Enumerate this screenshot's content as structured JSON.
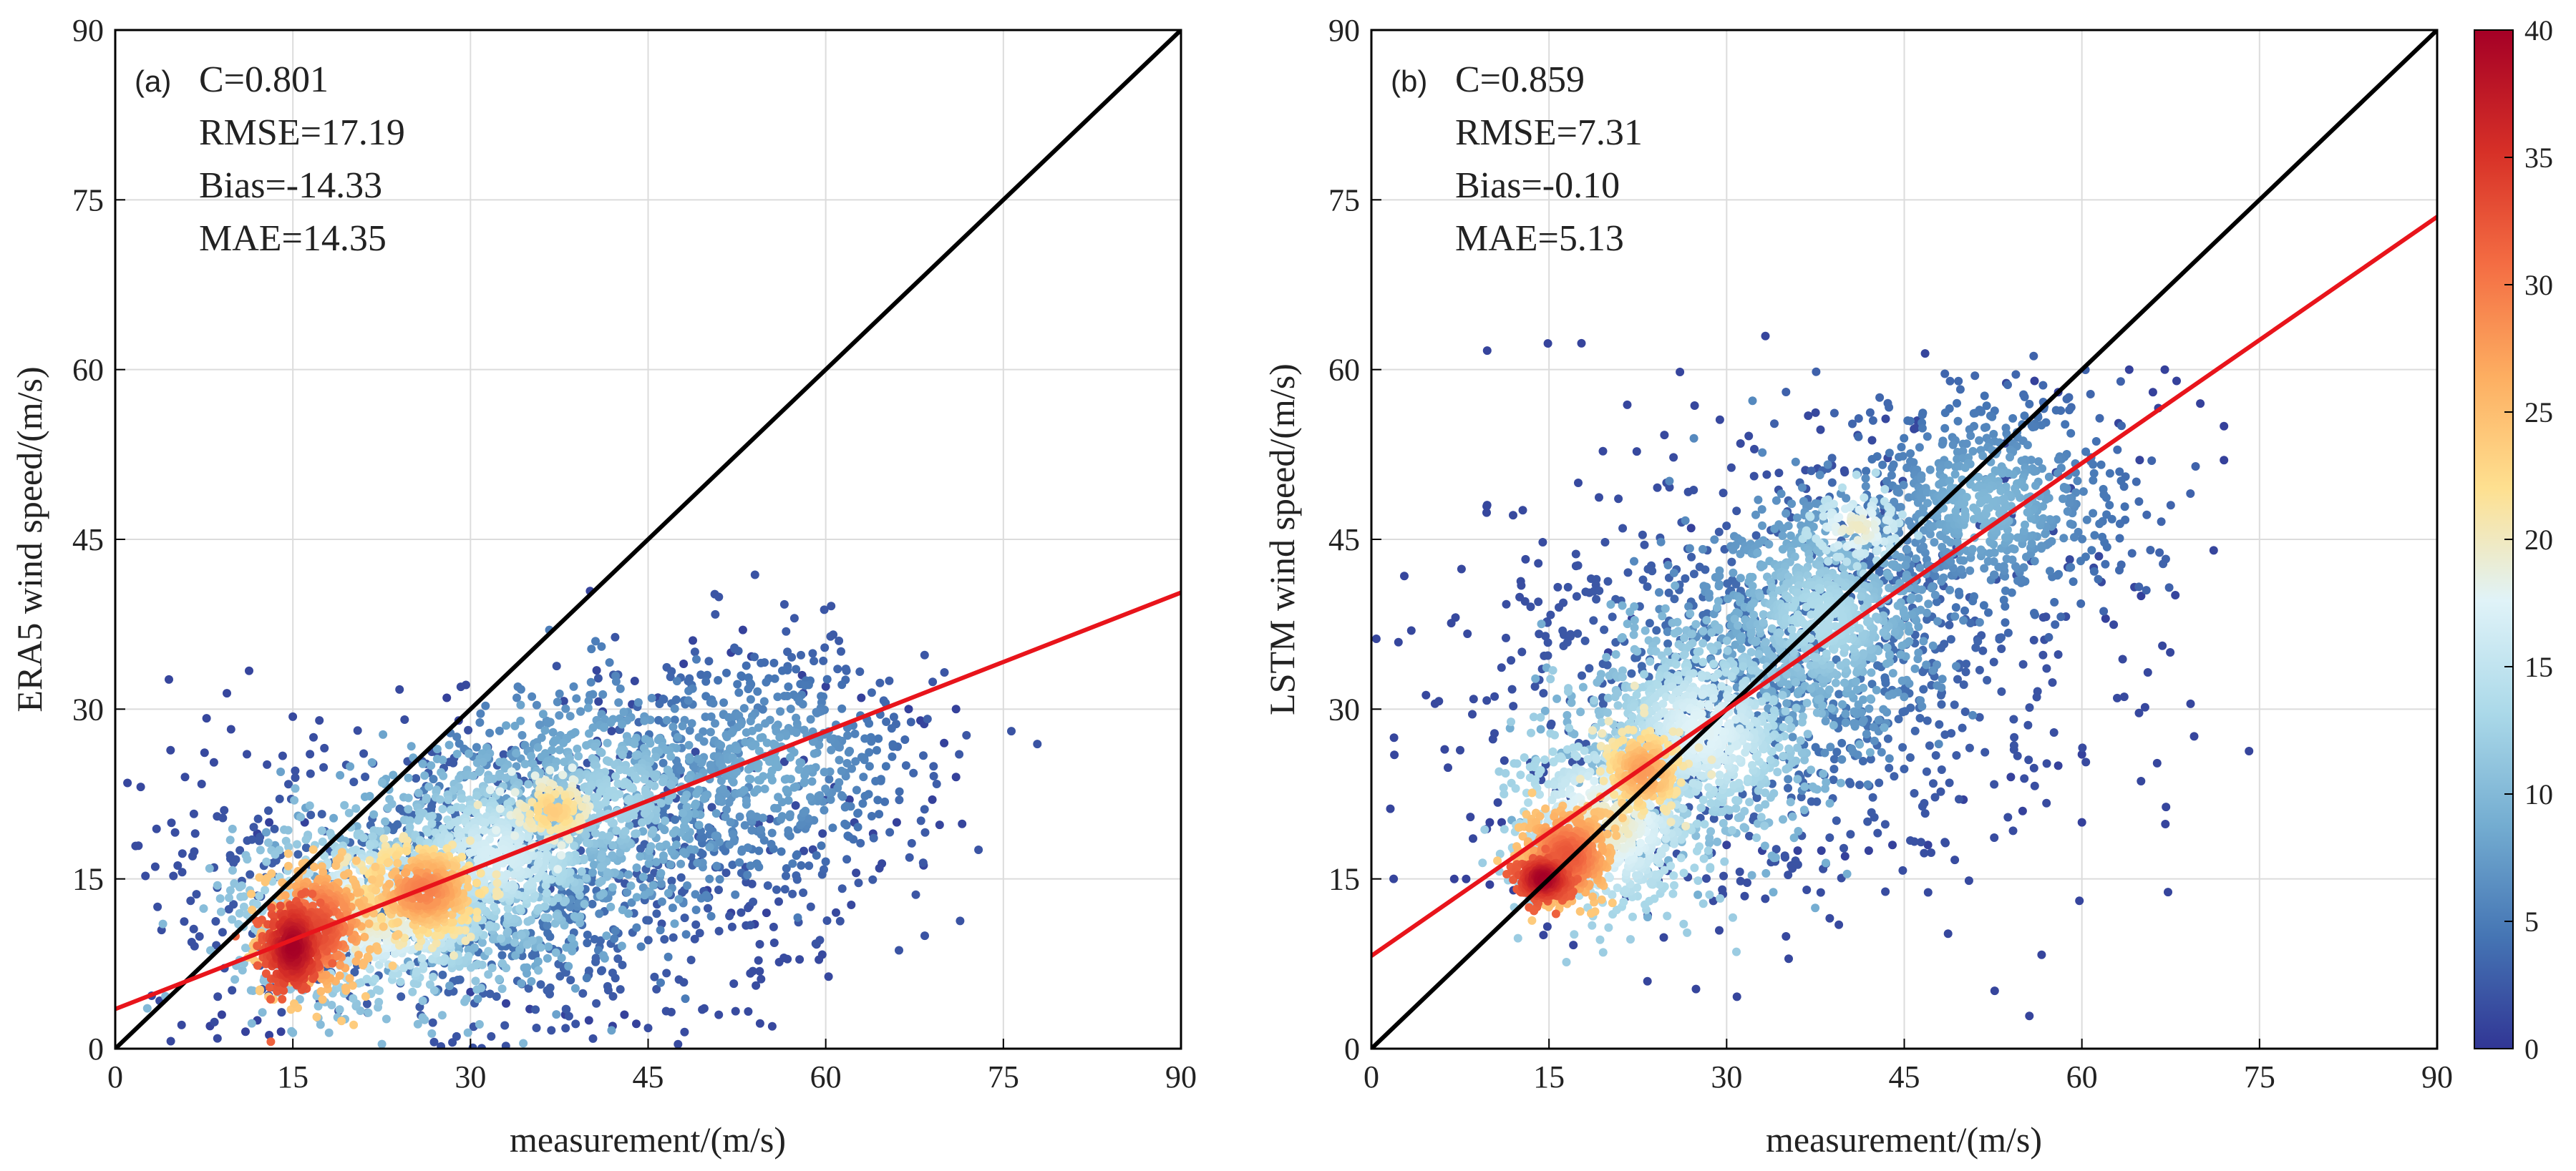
{
  "chart_data": [
    {
      "type": "scatter",
      "panel_label": "(a)",
      "xlabel": "measurement/(m/s)",
      "ylabel": "ERA5 wind speed/(m/s)",
      "xlim": [
        0,
        90
      ],
      "ylim": [
        0,
        90
      ],
      "xticks": [
        "0",
        "15",
        "30",
        "45",
        "60",
        "75",
        "90"
      ],
      "yticks": [
        "0",
        "15",
        "30",
        "45",
        "60",
        "75",
        "90"
      ],
      "grid": true,
      "stats": [
        "C=0.801",
        "RMSE=17.19",
        "Bias=-14.33",
        "MAE=14.35"
      ],
      "identity_line": {
        "x": [
          0,
          90
        ],
        "y": [
          0,
          90
        ],
        "color": "#000000"
      },
      "fit_line": {
        "x": [
          0,
          90
        ],
        "y": [
          3.5,
          40.3
        ],
        "color": "#e8141b"
      },
      "density_scatter": {
        "description": "points colored by density",
        "clusters": [
          {
            "x": 15,
            "y": 9,
            "sx": 1.2,
            "sy": 2.0,
            "n": 380,
            "d": [
              32,
              40
            ]
          },
          {
            "x": 17,
            "y": 10.5,
            "sx": 2.3,
            "sy": 2.8,
            "n": 420,
            "d": [
              24,
              34
            ]
          },
          {
            "x": 26,
            "y": 14,
            "sx": 2.8,
            "sy": 2.2,
            "n": 420,
            "d": [
              20,
              30
            ]
          },
          {
            "x": 22,
            "y": 12,
            "sx": 6,
            "sy": 4,
            "n": 900,
            "d": [
              10,
              20
            ]
          },
          {
            "x": 32,
            "y": 17,
            "sx": 6,
            "sy": 4.5,
            "n": 900,
            "d": [
              8,
              17
            ]
          },
          {
            "x": 37,
            "y": 21,
            "sx": 1.8,
            "sy": 1.5,
            "n": 120,
            "d": [
              18,
              24
            ]
          },
          {
            "x": 42,
            "y": 22,
            "sx": 6,
            "sy": 5,
            "n": 700,
            "d": [
              5,
              13
            ]
          },
          {
            "x": 55,
            "y": 25,
            "sx": 7,
            "sy": 5.5,
            "n": 600,
            "d": [
              2,
              9
            ]
          },
          {
            "x": 30,
            "y": 14,
            "sx": 14,
            "sy": 8,
            "n": 800,
            "d": [
              1,
              5
            ]
          }
        ],
        "extra_points": [
          [
            8,
            2
          ],
          [
            9,
            3
          ],
          [
            11,
            1.5
          ],
          [
            12,
            2.5
          ],
          [
            13,
            1.2
          ],
          [
            14,
            1.5
          ],
          [
            30,
            5
          ],
          [
            33,
            4
          ],
          [
            35,
            3.5
          ],
          [
            38,
            3
          ],
          [
            40,
            2.5
          ],
          [
            42,
            2
          ],
          [
            44,
            2.2
          ],
          [
            43,
            3
          ],
          [
            50,
            14
          ],
          [
            52,
            12
          ],
          [
            54,
            11
          ],
          [
            55,
            12
          ],
          [
            53,
            37
          ],
          [
            52,
            35
          ],
          [
            48,
            34
          ],
          [
            58,
            33
          ],
          [
            60,
            32
          ],
          [
            63,
            31
          ],
          [
            67,
            30
          ],
          [
            68,
            29
          ],
          [
            70,
            27
          ],
          [
            71,
            24
          ],
          [
            71,
            30
          ],
          [
            66,
            20
          ],
          [
            62,
            22
          ],
          [
            64,
            19
          ],
          [
            69,
            22
          ],
          [
            12,
            19
          ],
          [
            13,
            20
          ],
          [
            16,
            20
          ],
          [
            28,
            31
          ],
          [
            29,
            29
          ]
        ]
      }
    },
    {
      "type": "scatter",
      "panel_label": "(b)",
      "xlabel": "measurement/(m/s)",
      "ylabel": "LSTM wind speed/(m/s)",
      "xlim": [
        0,
        90
      ],
      "ylim": [
        0,
        90
      ],
      "xticks": [
        "0",
        "15",
        "30",
        "45",
        "60",
        "75",
        "90"
      ],
      "yticks": [
        "0",
        "15",
        "30",
        "45",
        "60",
        "75",
        "90"
      ],
      "grid": true,
      "stats": [
        "C=0.859",
        "RMSE=7.31",
        "Bias=-0.10",
        "MAE=5.13"
      ],
      "identity_line": {
        "x": [
          0,
          90
        ],
        "y": [
          0,
          90
        ],
        "color": "#000000"
      },
      "fit_line": {
        "x": [
          0,
          90
        ],
        "y": [
          8.2,
          73.5
        ],
        "color": "#e8141b"
      },
      "density_scatter": {
        "description": "points colored by density",
        "clusters": [
          {
            "x": 14.5,
            "y": 15,
            "sx": 1.1,
            "sy": 0.9,
            "n": 380,
            "d": [
              32,
              40
            ]
          },
          {
            "x": 16.5,
            "y": 17,
            "sx": 2.0,
            "sy": 2.2,
            "n": 380,
            "d": [
              24,
              33
            ]
          },
          {
            "x": 23,
            "y": 24.5,
            "sx": 1.8,
            "sy": 2.0,
            "n": 220,
            "d": [
              20,
              28
            ]
          },
          {
            "x": 20,
            "y": 20,
            "sx": 4,
            "sy": 4,
            "n": 700,
            "d": [
              12,
              20
            ]
          },
          {
            "x": 28,
            "y": 28,
            "sx": 5,
            "sy": 5,
            "n": 900,
            "d": [
              9,
              18
            ]
          },
          {
            "x": 38,
            "y": 38,
            "sx": 5,
            "sy": 5,
            "n": 900,
            "d": [
              6,
              14
            ]
          },
          {
            "x": 41,
            "y": 46,
            "sx": 2.0,
            "sy": 1.5,
            "n": 120,
            "d": [
              14,
              20
            ]
          },
          {
            "x": 52,
            "y": 48,
            "sx": 6,
            "sy": 5,
            "n": 700,
            "d": [
              3,
              10
            ]
          },
          {
            "x": 35,
            "y": 33,
            "sx": 13,
            "sy": 10,
            "n": 900,
            "d": [
              1,
              5
            ]
          }
        ],
        "extra_points": [
          [
            7,
            15
          ],
          [
            8,
            15
          ],
          [
            10,
            14.5
          ],
          [
            12,
            14
          ],
          [
            13,
            14
          ],
          [
            11,
            20
          ],
          [
            10,
            20
          ],
          [
            30,
            18
          ],
          [
            33,
            17.5
          ],
          [
            36,
            17.5
          ],
          [
            38,
            17.5
          ],
          [
            40,
            17
          ],
          [
            42,
            17.5
          ],
          [
            44,
            18
          ],
          [
            47,
            18
          ],
          [
            50,
            22
          ],
          [
            54,
            24
          ],
          [
            58,
            25
          ],
          [
            60,
            26
          ],
          [
            60,
            20
          ],
          [
            55,
            21
          ],
          [
            62,
            38
          ],
          [
            65,
            40
          ],
          [
            66,
            58
          ],
          [
            68,
            59
          ],
          [
            70,
            57
          ],
          [
            72,
            55
          ],
          [
            72,
            52
          ],
          [
            64,
            60
          ],
          [
            67,
            60
          ],
          [
            58,
            58
          ],
          [
            56,
            59
          ],
          [
            20,
            35
          ],
          [
            22,
            38
          ],
          [
            25,
            43
          ],
          [
            27,
            46
          ]
        ]
      }
    }
  ],
  "colorbar": {
    "min": 0,
    "max": 40,
    "ticks": [
      "0",
      "5",
      "10",
      "15",
      "20",
      "25",
      "30",
      "35",
      "40"
    ],
    "colormap": "RdYlBu_r",
    "stops": [
      "#313695",
      "#4575b4",
      "#74add1",
      "#abd9e9",
      "#e0f3f8",
      "#fee090",
      "#fdae61",
      "#f46d43",
      "#d73027",
      "#a50026"
    ]
  }
}
